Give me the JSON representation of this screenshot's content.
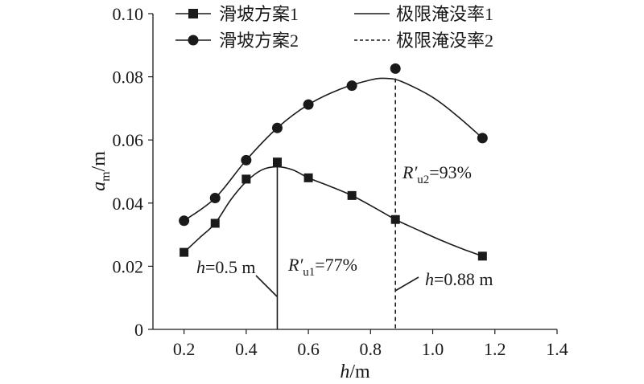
{
  "chart_data": {
    "type": "line",
    "xlabel_var": "h",
    "xlabel_unit": "/m",
    "ylabel_var": "a",
    "ylabel_sub": "m",
    "ylabel_unit": "/m",
    "xlim": [
      0.1,
      1.4
    ],
    "ylim": [
      0,
      0.1
    ],
    "x_ticks": [
      "0.2",
      "0.4",
      "0.6",
      "0.8",
      "1.0",
      "1.2",
      "1.4"
    ],
    "y_ticks": [
      "0",
      "0.02",
      "0.04",
      "0.06",
      "0.08",
      "0.10"
    ],
    "x_tick_values": [
      0.2,
      0.4,
      0.6,
      0.8,
      1.0,
      1.2,
      1.4
    ],
    "y_tick_values": [
      0,
      0.02,
      0.04,
      0.06,
      0.08,
      0.1
    ],
    "series": [
      {
        "name": "滑坡方案1",
        "marker": "square",
        "x": [
          0.2,
          0.3,
          0.4,
          0.5,
          0.6,
          0.74,
          0.88,
          1.16
        ],
        "y": [
          0.0244,
          0.0336,
          0.0476,
          0.053,
          0.048,
          0.0424,
          0.0348,
          0.0232
        ],
        "curve_x": [
          0.2,
          0.25,
          0.3,
          0.35,
          0.4,
          0.45,
          0.5,
          0.55,
          0.6,
          0.67,
          0.74,
          0.81,
          0.88,
          0.95,
          1.02,
          1.09,
          1.16
        ],
        "curve_y": [
          0.0244,
          0.029,
          0.0336,
          0.041,
          0.0468,
          0.0505,
          0.0515,
          0.0505,
          0.048,
          0.0453,
          0.0424,
          0.0387,
          0.0348,
          0.0316,
          0.0285,
          0.0257,
          0.0232
        ]
      },
      {
        "name": "滑坡方案2",
        "marker": "circle",
        "x": [
          0.2,
          0.3,
          0.4,
          0.5,
          0.6,
          0.74,
          0.88,
          1.16
        ],
        "y": [
          0.0344,
          0.0416,
          0.0536,
          0.0638,
          0.0712,
          0.0772,
          0.0826,
          0.0606
        ],
        "curve_x": [
          0.2,
          0.3,
          0.4,
          0.5,
          0.6,
          0.7,
          0.8,
          0.85,
          0.9,
          1.0,
          1.08,
          1.16
        ],
        "curve_y": [
          0.0344,
          0.0416,
          0.0536,
          0.0638,
          0.0712,
          0.076,
          0.079,
          0.0795,
          0.0785,
          0.0735,
          0.0675,
          0.0606
        ]
      }
    ],
    "reference_lines": [
      {
        "name": "极限淹没率1",
        "style": "solid",
        "x": 0.5,
        "y_top": 0.0515
      },
      {
        "name": "极限淹没率2",
        "style": "dashed",
        "x": 0.88,
        "y_top": 0.0795
      }
    ],
    "annotations": [
      {
        "id": "h1",
        "var": "h",
        "value": "=0.5 m"
      },
      {
        "id": "r1",
        "var": "R′",
        "sub": "u1",
        "value": "=77%"
      },
      {
        "id": "r2",
        "var": "R′",
        "sub": "u2",
        "value": "=93%"
      },
      {
        "id": "h2",
        "var": "h",
        "value": "=0.88 m"
      }
    ],
    "legend_position": "top"
  }
}
